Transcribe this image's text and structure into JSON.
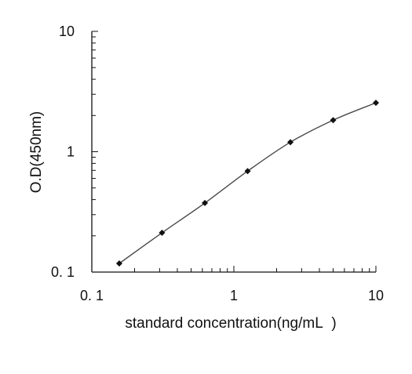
{
  "chart_data": {
    "type": "line",
    "xlabel": "standard concentration(ng/mL  )",
    "ylabel": "O.D(450nm)",
    "xscale": "log",
    "yscale": "log",
    "xlim": [
      0.1,
      10
    ],
    "ylim": [
      0.1,
      10
    ],
    "x_tick_labels": [
      "0. 1",
      "1",
      "10"
    ],
    "y_tick_labels": [
      "0. 1",
      "1",
      "10"
    ],
    "grid": false,
    "legend": "none",
    "series": [
      {
        "x": [
          0.156,
          0.312,
          0.625,
          1.25,
          2.5,
          5,
          10
        ],
        "y": [
          0.118,
          0.212,
          0.375,
          0.69,
          1.2,
          1.83,
          2.55
        ]
      }
    ],
    "colors": {
      "line": "#4a4a4a",
      "marker": "#111111",
      "axis": "#111111"
    }
  }
}
